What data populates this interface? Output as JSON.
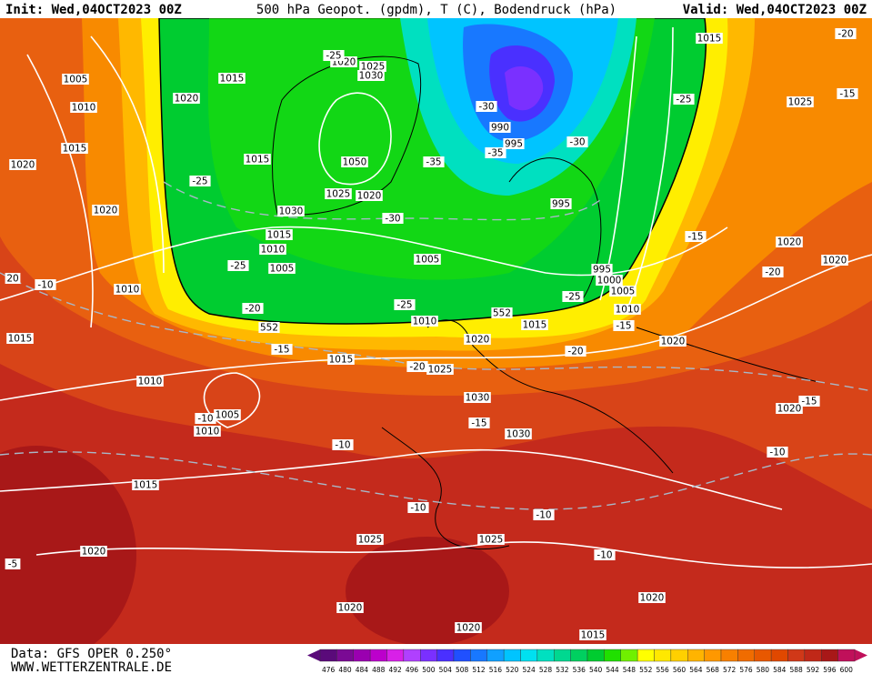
{
  "header": {
    "init": "Init: Wed,04OCT2023 00Z",
    "title": "500 hPa Geopot. (gpdm), T (C), Bodendruck (hPa)",
    "valid": "Valid: Wed,04OCT2023 00Z"
  },
  "footer": {
    "data": "Data: GFS OPER 0.250°",
    "site": "WWW.WETTERZENTRALE.DE"
  },
  "legend": {
    "levels": [
      476,
      480,
      484,
      488,
      492,
      496,
      500,
      504,
      508,
      512,
      516,
      520,
      524,
      528,
      532,
      536,
      540,
      544,
      548,
      552,
      556,
      560,
      564,
      568,
      572,
      576,
      580,
      584,
      588,
      592,
      596,
      600
    ],
    "colors": [
      "#5a0a7a",
      "#7a0a94",
      "#9a00b0",
      "#bc00cc",
      "#d820e8",
      "#b040ff",
      "#7a30ff",
      "#4a30ff",
      "#2050ff",
      "#1878ff",
      "#10a0ff",
      "#00c4ff",
      "#00e0f0",
      "#00e0c0",
      "#00d890",
      "#00d060",
      "#00cc30",
      "#20e000",
      "#70f000",
      "#ffff00",
      "#ffe800",
      "#ffd000",
      "#ffb400",
      "#ff9800",
      "#f88000",
      "#f06c00",
      "#e85800",
      "#e04800",
      "#d03818",
      "#c02818",
      "#a81818",
      "#c0105a"
    ]
  },
  "map": {
    "labels": [
      "1005",
      "1010",
      "1015",
      "1020",
      "1020",
      "1010",
      "1015",
      "1020",
      "1015",
      "1020",
      "1025",
      "1030",
      "1050",
      "1025",
      "1020",
      "1030",
      "1015",
      "1015",
      "1010",
      "1005",
      "-25",
      "-25",
      "-20",
      "-30",
      "-35",
      "-25",
      "1005",
      "1010",
      "990",
      "995",
      "-30",
      "-35",
      "-30",
      "995",
      "-25",
      "1015",
      "-20",
      "-15",
      "1025",
      "1020",
      "-15",
      "995",
      "1000",
      "1005",
      "-25",
      "1010",
      "1015",
      "-15",
      "1020",
      "-20",
      "1020",
      "1020",
      "-20",
      "1025",
      "1015",
      "-20",
      "-15",
      "1010",
      "1005",
      "-10",
      "1010",
      "1030",
      "-15",
      "1030",
      "-10",
      "-10",
      "1025",
      "1025",
      "-10",
      "-10",
      "-10",
      "-15",
      "1020",
      "1020",
      "1015",
      "1020",
      "1020",
      "1020",
      "1015",
      "-5",
      "-10",
      "20",
      "552",
      "552",
      "-25"
    ]
  }
}
